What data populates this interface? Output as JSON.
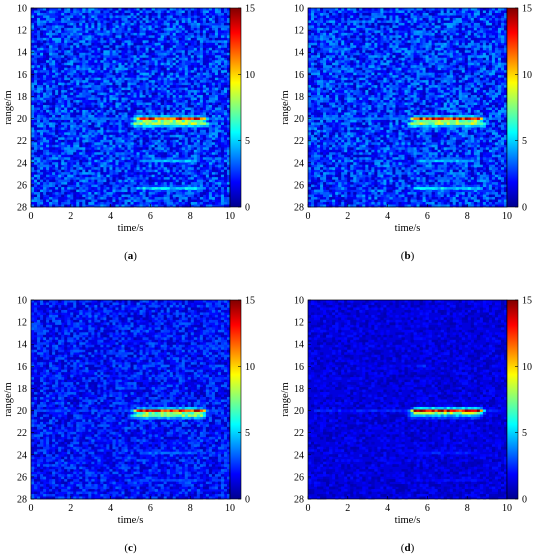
{
  "colorbar": {
    "min": 0,
    "max": 15,
    "ticks": [
      "15",
      "10",
      "5",
      "0"
    ],
    "colormap": [
      "#00008f",
      "#0000ff",
      "#0080ff",
      "#00ffff",
      "#80ff80",
      "#ffff00",
      "#ff8000",
      "#ff0000",
      "#800000"
    ]
  },
  "chart_data": [
    {
      "type": "heatmap",
      "xlabel": "time/s",
      "ylabel": "range/m",
      "caption": "(a)",
      "xlim": [
        0,
        10
      ],
      "ylim": [
        28,
        10
      ],
      "x_ticks": [
        "0",
        "2",
        "4",
        "6",
        "8",
        "10"
      ],
      "y_ticks": [
        "10",
        "12",
        "14",
        "16",
        "18",
        "20",
        "22",
        "24",
        "26",
        "28"
      ],
      "background_level": 2.5,
      "noise": 1.8,
      "features": [
        {
          "range": 16.0,
          "t0": 5.2,
          "t1": 6.2,
          "intensity": 4.5
        },
        {
          "range": 20.05,
          "t0": 5.0,
          "t1": 9.0,
          "intensity": 14
        },
        {
          "range": 20.5,
          "t0": 4.8,
          "t1": 9.2,
          "intensity": 9
        },
        {
          "range": 20.0,
          "t0": 0,
          "t1": 10,
          "intensity": 3.5
        },
        {
          "range": 22.8,
          "t0": 3.2,
          "t1": 4.6,
          "intensity": 3.5
        },
        {
          "range": 23.8,
          "t0": 5.2,
          "t1": 8.7,
          "intensity": 5
        },
        {
          "range": 26.3,
          "t0": 5.0,
          "t1": 9.0,
          "intensity": 5.5
        }
      ]
    },
    {
      "type": "heatmap",
      "xlabel": "time/s",
      "ylabel": "range/m",
      "caption": "(b)",
      "xlim": [
        0,
        10
      ],
      "ylim": [
        28,
        10
      ],
      "x_ticks": [
        "0",
        "2",
        "4",
        "6",
        "8",
        "10"
      ],
      "y_ticks": [
        "10",
        "12",
        "14",
        "16",
        "18",
        "20",
        "22",
        "24",
        "26",
        "28"
      ],
      "background_level": 2.5,
      "noise": 1.8,
      "features": [
        {
          "range": 16.0,
          "t0": 5.2,
          "t1": 6.2,
          "intensity": 4.5
        },
        {
          "range": 20.05,
          "t0": 5.0,
          "t1": 9.0,
          "intensity": 14
        },
        {
          "range": 20.5,
          "t0": 4.8,
          "t1": 9.2,
          "intensity": 9
        },
        {
          "range": 20.0,
          "t0": 0,
          "t1": 10,
          "intensity": 3.5
        },
        {
          "range": 22.8,
          "t0": 3.2,
          "t1": 4.6,
          "intensity": 3.5
        },
        {
          "range": 23.8,
          "t0": 5.2,
          "t1": 8.7,
          "intensity": 5
        },
        {
          "range": 26.3,
          "t0": 5.0,
          "t1": 9.0,
          "intensity": 5.5
        }
      ]
    },
    {
      "type": "heatmap",
      "xlabel": "time/s",
      "ylabel": "range/m",
      "caption": "(c)",
      "xlim": [
        0,
        10
      ],
      "ylim": [
        28,
        10
      ],
      "x_ticks": [
        "0",
        "2",
        "4",
        "6",
        "8",
        "10"
      ],
      "y_ticks": [
        "10",
        "12",
        "14",
        "16",
        "18",
        "20",
        "22",
        "24",
        "26",
        "28"
      ],
      "background_level": 2.0,
      "noise": 1.4,
      "features": [
        {
          "range": 16.0,
          "t0": 5.2,
          "t1": 6.2,
          "intensity": 3.5
        },
        {
          "range": 20.05,
          "t0": 5.0,
          "t1": 9.0,
          "intensity": 14
        },
        {
          "range": 20.5,
          "t0": 4.8,
          "t1": 9.0,
          "intensity": 8
        },
        {
          "range": 20.0,
          "t0": 0,
          "t1": 10,
          "intensity": 3
        },
        {
          "range": 22.8,
          "t0": 3.0,
          "t1": 5.0,
          "intensity": 2.5
        },
        {
          "range": 23.8,
          "t0": 5.2,
          "t1": 8.5,
          "intensity": 3.5
        },
        {
          "range": 26.3,
          "t0": 5.0,
          "t1": 9.0,
          "intensity": 3
        }
      ]
    },
    {
      "type": "heatmap",
      "xlabel": "time/s",
      "ylabel": "range/m",
      "caption": "(d)",
      "xlim": [
        0,
        10
      ],
      "ylim": [
        28,
        10
      ],
      "x_ticks": [
        "0",
        "2",
        "4",
        "6",
        "8",
        "10"
      ],
      "y_ticks": [
        "10",
        "12",
        "14",
        "16",
        "18",
        "20",
        "22",
        "24",
        "26",
        "28"
      ],
      "background_level": 1.3,
      "noise": 0.8,
      "features": [
        {
          "range": 16.0,
          "t0": 5.2,
          "t1": 6.2,
          "intensity": 3
        },
        {
          "range": 20.05,
          "t0": 5.0,
          "t1": 9.0,
          "intensity": 15
        },
        {
          "range": 20.5,
          "t0": 4.8,
          "t1": 9.0,
          "intensity": 5
        },
        {
          "range": 20.0,
          "t0": 0,
          "t1": 10,
          "intensity": 2.5
        },
        {
          "range": 22.8,
          "t0": 3.0,
          "t1": 5.0,
          "intensity": 2
        },
        {
          "range": 23.8,
          "t0": 5.2,
          "t1": 8.5,
          "intensity": 2.5
        },
        {
          "range": 26.3,
          "t0": 5.0,
          "t1": 9.0,
          "intensity": 2
        }
      ]
    }
  ]
}
